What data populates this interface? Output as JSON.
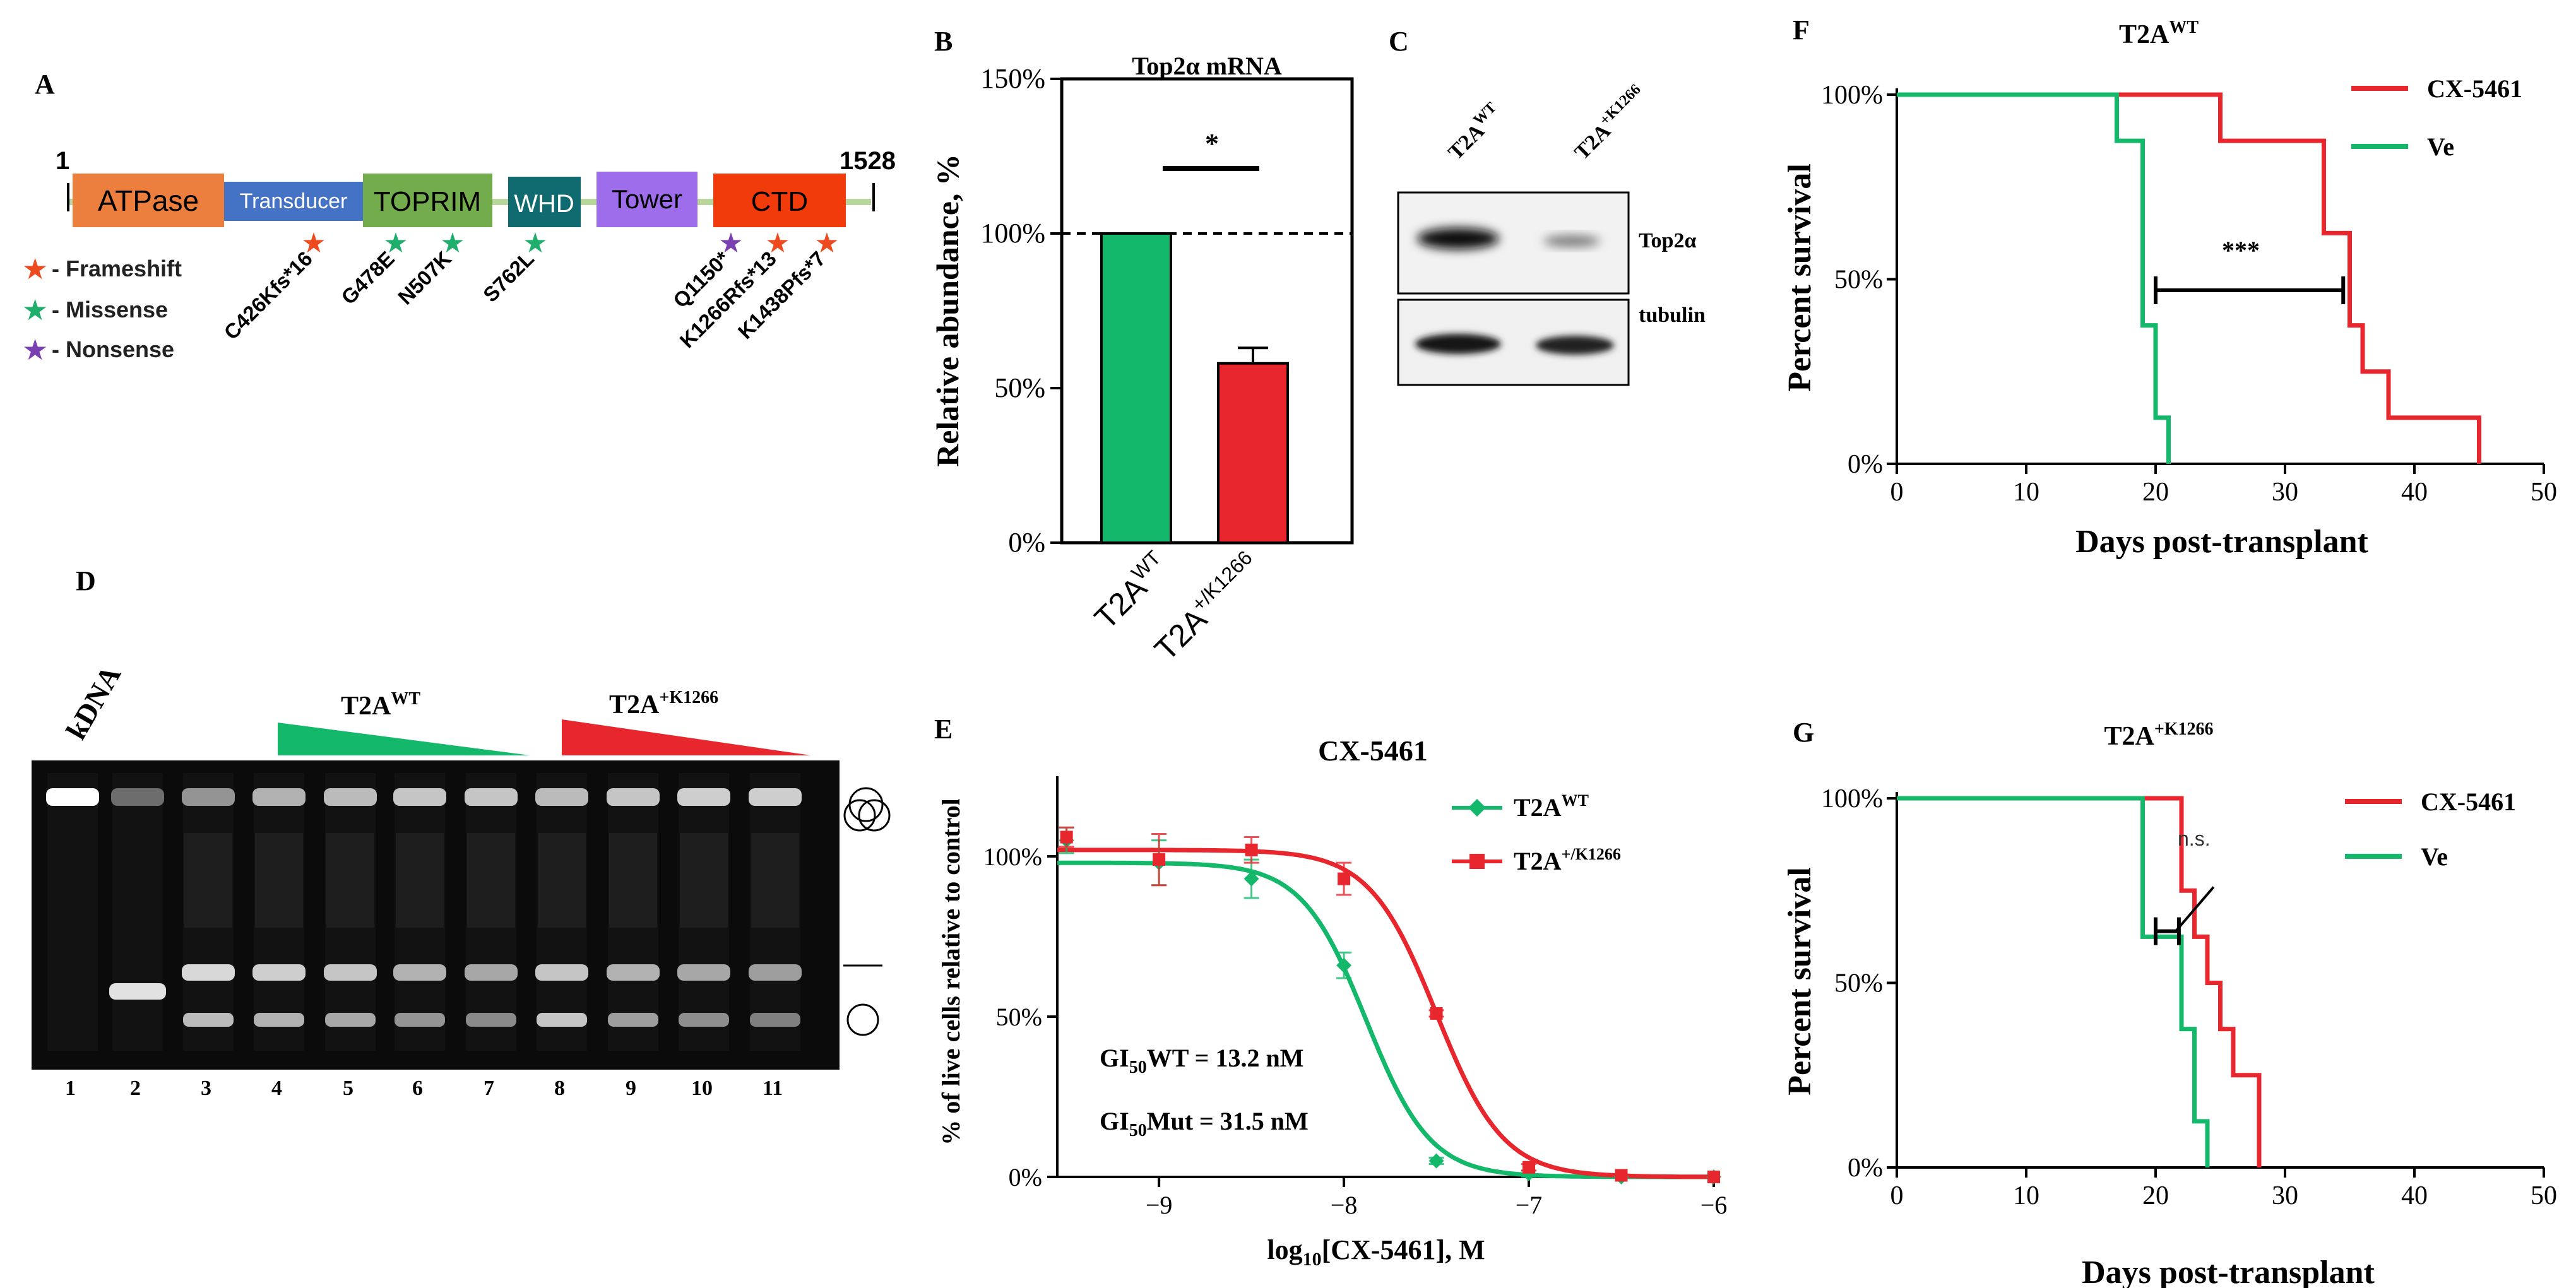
{
  "colors": {
    "green": "#13b86a",
    "red": "#e8262d",
    "black": "#000000",
    "atpase": "#ec7f3d",
    "transducer": "#4472c4",
    "toprim": "#72ac4d",
    "whd": "#0f6b70",
    "tower": "#9e6dec",
    "ctd": "#f23b0a",
    "star_frameshift": "#ee4a1f",
    "star_missense": "#1fae6b",
    "star_nonsense": "#7a3fb0"
  },
  "panel_letters": {
    "a": "A",
    "b": "B",
    "c": "C",
    "d": "D",
    "e": "E",
    "f": "F",
    "g": "G"
  },
  "panel_a": {
    "start_label": "1",
    "end_label": "1528",
    "domains": [
      {
        "label": "ATPase",
        "color": "#ec7f3d"
      },
      {
        "label": "Transducer",
        "color": "#4472c4"
      },
      {
        "label": "TOPRIM",
        "color": "#72ac4d"
      },
      {
        "label": "WHD",
        "color": "#0f6b70"
      },
      {
        "label": "Tower",
        "color": "#9e6dec"
      },
      {
        "label": "CTD",
        "color": "#f23b0a"
      }
    ],
    "legend": [
      {
        "label": "- Frameshift",
        "color": "#ee4a1f"
      },
      {
        "label": "- Missense",
        "color": "#1fae6b"
      },
      {
        "label": "- Nonsense",
        "color": "#7a3fb0"
      }
    ],
    "mutations": [
      {
        "label": "C426Kfs*16",
        "type": "frameshift"
      },
      {
        "label": "G478E",
        "type": "missense"
      },
      {
        "label": "N507K",
        "type": "missense"
      },
      {
        "label": "S762L",
        "type": "missense"
      },
      {
        "label": "Q1150*",
        "type": "nonsense"
      },
      {
        "label": "K1266Rfs*13",
        "type": "frameshift"
      },
      {
        "label": "K1438Pfs*7",
        "type": "frameshift"
      }
    ]
  },
  "panel_c": {
    "lanes": [
      "T2A",
      "T2A"
    ],
    "lane_sups": [
      "WT",
      "+K1266"
    ],
    "blots": [
      "Top2α",
      "tubulin"
    ]
  },
  "panel_d": {
    "kdna_label": "kDNA",
    "groups": [
      {
        "label": "T2A",
        "sup": "WT"
      },
      {
        "label": "T2A",
        "sup": "+K1266"
      }
    ],
    "lane_numbers": [
      "1",
      "2",
      "3",
      "4",
      "5",
      "6",
      "7",
      "8",
      "9",
      "10",
      "11"
    ]
  },
  "chart_data": [
    {
      "panel": "B",
      "type": "bar",
      "title": "Top2α mRNA",
      "ylabel": "Relative abundance, %",
      "categories": [
        "T2A WT",
        "T2A +/K1266"
      ],
      "category_base": [
        "T2A",
        "T2A"
      ],
      "category_sup": [
        "WT",
        "+/K1266"
      ],
      "values": [
        100,
        58
      ],
      "errors": [
        0,
        5
      ],
      "bar_colors": [
        "#13b86a",
        "#e8262d"
      ],
      "ylim": [
        0,
        150
      ],
      "yticks": [
        0,
        50,
        100,
        150
      ],
      "ytick_labels": [
        "0%",
        "50%",
        "100%",
        "150%"
      ],
      "reference_line": 100,
      "significance": "*"
    },
    {
      "panel": "E",
      "type": "line",
      "title": "CX-5461",
      "xlabel": "log10[CX-5461], M",
      "xlabel_base": "log",
      "xlabel_sub": "10",
      "xlabel_rest": "[CX-5461], M",
      "ylabel": "% of live cells relative to control",
      "xlim": [
        -9.55,
        -6
      ],
      "ylim": [
        0,
        125
      ],
      "xticks": [
        -9,
        -8,
        -7,
        -6
      ],
      "xtick_labels": [
        "−9",
        "−8",
        "−7",
        "−6"
      ],
      "yticks": [
        0,
        50,
        100
      ],
      "ytick_labels": [
        "0%",
        "50%",
        "100%"
      ],
      "series": [
        {
          "name": "T2A WT",
          "name_base": "T2A",
          "name_sup": "WT",
          "color": "#13b86a",
          "marker": "diamond",
          "x": [
            -9.5,
            -9.0,
            -8.5,
            -8.0,
            -7.5,
            -7.0,
            -6.5,
            -6.0
          ],
          "y": [
            105,
            98,
            93,
            66,
            5,
            1,
            0,
            0
          ],
          "err": [
            4,
            7,
            6,
            4,
            1,
            1,
            0,
            0
          ],
          "fit": {
            "top": 98,
            "bottom": 0,
            "log_ec50": -7.88,
            "hill": 2.5
          }
        },
        {
          "name": "T2A +/K1266",
          "name_base": "T2A",
          "name_sup": "+/K1266",
          "color": "#e8262d",
          "marker": "square",
          "x": [
            -9.5,
            -9.0,
            -8.5,
            -8.0,
            -7.5,
            -7.0,
            -6.5,
            -6.0
          ],
          "y": [
            106,
            99,
            102,
            93,
            51,
            3,
            0.5,
            0
          ],
          "err": [
            3,
            8,
            4,
            5,
            1,
            1,
            0,
            0
          ],
          "fit": {
            "top": 102,
            "bottom": 0,
            "log_ec50": -7.5,
            "hill": 2.4
          }
        }
      ],
      "annotations": [
        {
          "base": "GI",
          "sub": "50",
          "rest": "WT = 13.2 nM"
        },
        {
          "base": "GI",
          "sub": "50",
          "rest": "Mut = 31.5 nM"
        }
      ]
    },
    {
      "panel": "F",
      "type": "line",
      "subtype": "kaplan-meier",
      "title": "T2A WT",
      "title_base": "T2A",
      "title_sup": "WT",
      "xlabel": "Days post-transplant",
      "ylabel": "Percent survival",
      "xlim": [
        0,
        50
      ],
      "ylim": [
        0,
        100
      ],
      "xticks": [
        0,
        10,
        20,
        30,
        40,
        50
      ],
      "yticks": [
        0,
        50,
        100
      ],
      "ytick_labels": [
        "0%",
        "50%",
        "100%"
      ],
      "series": [
        {
          "name": "CX-5461",
          "color": "#e8262d",
          "x": [
            0,
            25,
            33,
            35,
            36,
            38,
            45
          ],
          "y": [
            100,
            87.5,
            62.5,
            37.5,
            25,
            12.5,
            0
          ]
        },
        {
          "name": "Ve",
          "color": "#13b86a",
          "x": [
            0,
            17,
            19,
            20,
            21
          ],
          "y": [
            100,
            87.5,
            37.5,
            12.5,
            0
          ]
        }
      ],
      "comparison": {
        "x1": 20,
        "x2": 34.5,
        "y": 47,
        "label": "***"
      }
    },
    {
      "panel": "G",
      "type": "line",
      "subtype": "kaplan-meier",
      "title": "T2A +K1266",
      "title_base": "T2A",
      "title_sup": "+K1266",
      "xlabel": "Days post-transplant",
      "ylabel": "Percent survival",
      "xlim": [
        0,
        50
      ],
      "ylim": [
        0,
        100
      ],
      "xticks": [
        0,
        10,
        20,
        30,
        40,
        50
      ],
      "yticks": [
        0,
        50,
        100
      ],
      "ytick_labels": [
        "0%",
        "50%",
        "100%"
      ],
      "series": [
        {
          "name": "CX-5461",
          "color": "#e8262d",
          "x": [
            0,
            22,
            23,
            24,
            25,
            26,
            28
          ],
          "y": [
            100,
            75,
            62.5,
            50,
            37.5,
            25,
            0
          ]
        },
        {
          "name": "Ve",
          "color": "#13b86a",
          "x": [
            0,
            19,
            22,
            23,
            24
          ],
          "y": [
            100,
            62.5,
            37.5,
            12.5,
            0
          ]
        }
      ],
      "comparison": {
        "x1": 20,
        "x2": 21.8,
        "y": 64,
        "label": "n.s."
      }
    }
  ]
}
